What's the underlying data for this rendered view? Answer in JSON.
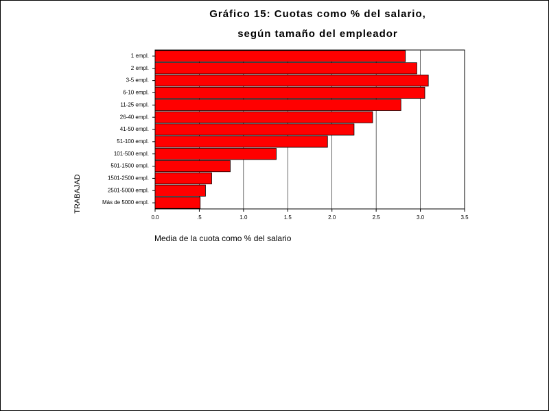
{
  "chart_data": {
    "type": "barh",
    "title": [
      "Gráfico 15: Cuotas como % del salario,",
      "según tamaño del empleador"
    ],
    "y_label": "TRABAJAD",
    "x_label": "Media de la cuota como % del salario",
    "categories": [
      "1 empl.",
      "2 empl.",
      "3-5 empl.",
      "6-10 empl.",
      "11-25 empl.",
      "26-40 empl.",
      "41-50 empl.",
      "51-100 empl.",
      "101-500 empl.",
      "501-1500 empl.",
      "1501-2500 empl.",
      "2501-5000 empl.",
      "Más de 5000 empl."
    ],
    "values": [
      2.83,
      2.96,
      3.09,
      3.05,
      2.78,
      2.46,
      2.25,
      1.95,
      1.37,
      0.85,
      0.64,
      0.57,
      0.51
    ],
    "color": "#ff0000",
    "xlim": [
      0,
      3.5
    ],
    "xticks": [
      {
        "value": 0,
        "label": "0.0"
      },
      {
        "value": 0.5,
        "label": ".5"
      },
      {
        "value": 1,
        "label": "1.0"
      },
      1.5,
      {
        "value": 2,
        "label": "2.0"
      },
      2.5,
      {
        "value": 3,
        "label": "3.0"
      },
      3.5
    ],
    "grid": true
  }
}
